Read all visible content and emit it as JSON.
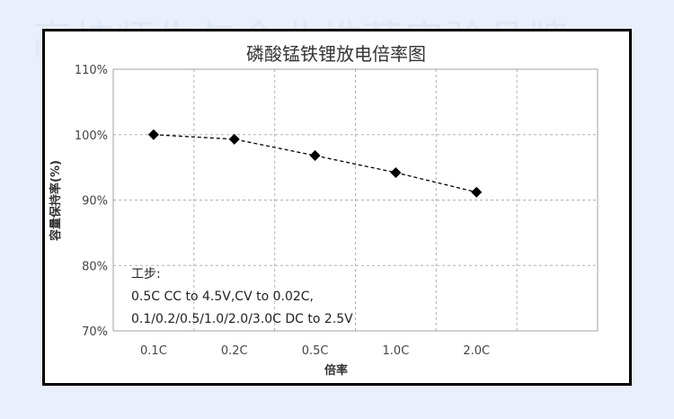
{
  "watermark": "高校师生与企业推荐实验品牌",
  "chart_data": {
    "type": "line",
    "title": "磷酸锰铁锂放电倍率图",
    "xlabel": "倍率",
    "ylabel": "容量保持率(%)",
    "categories": [
      "0.1C",
      "0.2C",
      "0.5C",
      "1.0C",
      "2.0C"
    ],
    "series": [
      {
        "values": [
          100.0,
          99.3,
          96.8,
          94.2,
          91.2
        ]
      }
    ],
    "y_ticks": [
      "70%",
      "80%",
      "90%",
      "100%",
      "110%"
    ],
    "ylim": [
      70,
      110
    ],
    "grid": true,
    "colors": {
      "line": "#000000",
      "grid": "#b0b0b0",
      "border": "#000000"
    },
    "marker": "diamond",
    "line_style": "dashed",
    "annotation": [
      "工步:",
      "0.5C CC to 4.5V,CV to 0.02C,",
      "0.1/0.2/0.5/1.0/2.0/3.0C DC to 2.5V"
    ]
  }
}
